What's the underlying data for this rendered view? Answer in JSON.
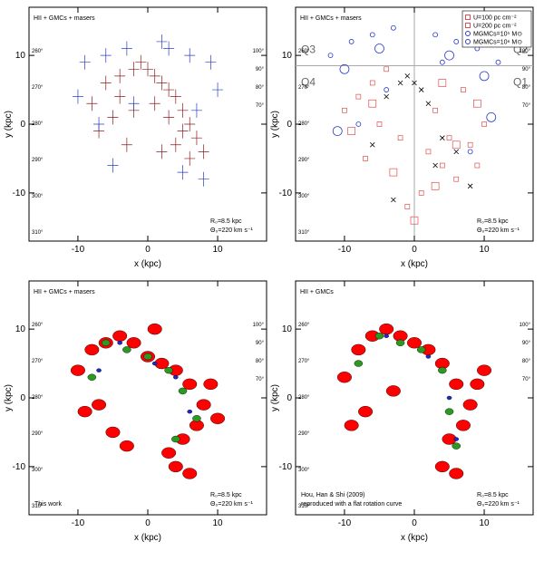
{
  "chart_data": [
    {
      "type": "scatter",
      "title": "HII + GMCs + masers",
      "xlabel": "x (kpc)",
      "ylabel": "y (kpc)",
      "xlim": [
        -17,
        17
      ],
      "ylim": [
        -17,
        17
      ],
      "xticks": [
        -10,
        0,
        10
      ],
      "yticks": [
        -10,
        0,
        10
      ],
      "notes": [
        "R₀=8.5 kpc",
        "Θ₀=220 km s⁻¹"
      ],
      "left_longitudes": [
        "260°",
        "270°",
        "280°",
        "290°",
        "300°",
        "310°"
      ],
      "right_longitudes": [
        "100°",
        "90°",
        "80°",
        "70°"
      ],
      "series": [
        {
          "color": "#8b1a1a",
          "marker": "plus",
          "x": [
            -6,
            -4,
            -2,
            -1,
            0,
            1,
            2,
            3,
            4,
            5,
            6,
            7,
            -8,
            -5,
            -3,
            2,
            4,
            6,
            8,
            -7,
            -2,
            3,
            5,
            1,
            -4
          ],
          "values": [
            6,
            7,
            8,
            9,
            8,
            7,
            6,
            5,
            4,
            2,
            0,
            -2,
            3,
            1,
            -3,
            -4,
            -3,
            -5,
            -4,
            -1,
            2,
            1,
            -1,
            3,
            4
          ]
        },
        {
          "color": "#2a3cc8",
          "marker": "plus",
          "x": [
            -9,
            -6,
            -3,
            3,
            6,
            9,
            -10,
            10,
            -5,
            5,
            7,
            -7,
            2,
            -2,
            8
          ],
          "values": [
            9,
            10,
            11,
            11,
            10,
            9,
            4,
            5,
            -6,
            -7,
            2,
            0,
            12,
            3,
            -8
          ]
        }
      ]
    },
    {
      "type": "scatter",
      "title": "HII + GMCs + masers",
      "xlabel": "x (kpc)",
      "ylabel": "y (kpc)",
      "xlim": [
        -17,
        17
      ],
      "ylim": [
        -17,
        17
      ],
      "xticks": [
        -10,
        0,
        10
      ],
      "yticks": [
        -10,
        0,
        10
      ],
      "notes": [
        "R₀=8.5 kpc",
        "Θ₀=220 km s⁻¹"
      ],
      "quadrants": [
        "Q3",
        "Q2",
        "Q4",
        "Q1"
      ],
      "left_longitudes": [
        "260°",
        "270°",
        "280°",
        "290°",
        "300°",
        "310°"
      ],
      "right_longitudes": [
        "100°",
        "90°",
        "80°",
        "70°"
      ],
      "series": [
        {
          "name": "U=100 pc cm⁻²",
          "color": "#e05050",
          "marker": "square",
          "size": 2.5,
          "x": [
            -10,
            -8,
            -6,
            -4,
            -2,
            2,
            4,
            6,
            8,
            10,
            -7,
            -5,
            3,
            5,
            7,
            1,
            -1,
            9
          ],
          "values": [
            2,
            4,
            6,
            8,
            -2,
            -4,
            -6,
            -8,
            -3,
            0,
            -5,
            0,
            2,
            -2,
            5,
            -10,
            -12,
            -6
          ]
        },
        {
          "name": "U=200 pc cm⁻²",
          "color": "#e05050",
          "marker": "square",
          "size": 4,
          "x": [
            -9,
            -3,
            0,
            3,
            6,
            9,
            -6,
            4
          ],
          "values": [
            -1,
            -7,
            -14,
            -9,
            -3,
            3,
            3,
            6
          ]
        },
        {
          "name": "MGMCs=10⁵ M⊙",
          "color": "#2a3cc8",
          "marker": "circle",
          "size": 2.5,
          "x": [
            -12,
            -9,
            -6,
            -3,
            3,
            6,
            9,
            12,
            -8,
            8,
            -4,
            4
          ],
          "values": [
            10,
            12,
            13,
            14,
            13,
            12,
            11,
            9,
            0,
            -4,
            5,
            9
          ]
        },
        {
          "name": "MGMCs=10⁶ M⊙",
          "color": "#2a3cc8",
          "marker": "circle",
          "size": 5,
          "x": [
            -10,
            -5,
            5,
            10,
            -11,
            11
          ],
          "values": [
            8,
            11,
            10,
            7,
            -1,
            1
          ]
        },
        {
          "color": "#000000",
          "marker": "x",
          "size": 2.5,
          "x": [
            -4,
            -2,
            -1,
            0,
            1,
            2,
            4,
            6,
            -6,
            -3,
            3,
            8
          ],
          "values": [
            4,
            6,
            7,
            6,
            5,
            3,
            -2,
            -4,
            -3,
            -11,
            -6,
            -9
          ]
        }
      ]
    },
    {
      "type": "scatter",
      "title": "HII + GMCs + masers",
      "xlabel": "x (kpc)",
      "ylabel": "y (kpc)",
      "xlim": [
        -17,
        17
      ],
      "ylim": [
        -17,
        17
      ],
      "xticks": [
        -10,
        0,
        10
      ],
      "yticks": [
        -10,
        0,
        10
      ],
      "notes": [
        "R₀=8.5 kpc",
        "Θ₀=220 km s⁻¹"
      ],
      "corner_note": [
        "This work"
      ],
      "left_longitudes": [
        "260°",
        "270°",
        "280°",
        "290°",
        "300°",
        "310°"
      ],
      "right_longitudes": [
        "100°",
        "90°",
        "80°",
        "70°"
      ],
      "series": [
        {
          "color": "#ff0000",
          "marker": "blob",
          "size": 6,
          "x": [
            -10,
            -8,
            -6,
            -4,
            -2,
            0,
            2,
            4,
            6,
            8,
            10,
            -7,
            -5,
            3,
            5,
            7,
            1,
            -9,
            9,
            -3,
            4,
            6
          ],
          "values": [
            4,
            7,
            8,
            9,
            8,
            6,
            5,
            4,
            2,
            -1,
            -3,
            -1,
            -5,
            -8,
            -6,
            -4,
            10,
            -2,
            2,
            -7,
            -10,
            -11
          ]
        },
        {
          "color": "#2a9a20",
          "marker": "blob",
          "size": 3.5,
          "x": [
            -6,
            -3,
            0,
            3,
            5,
            7,
            -8,
            4
          ],
          "values": [
            8,
            7,
            6,
            4,
            1,
            -3,
            3,
            -6
          ]
        },
        {
          "color": "#1c2acc",
          "marker": "blob",
          "size": 2,
          "x": [
            -4,
            1,
            4,
            -7,
            6
          ],
          "values": [
            8,
            5,
            3,
            4,
            -2
          ]
        }
      ]
    },
    {
      "type": "scatter",
      "title": "HII + GMCs",
      "xlabel": "x (kpc)",
      "ylabel": "y (kpc)",
      "xlim": [
        -17,
        17
      ],
      "ylim": [
        -17,
        17
      ],
      "xticks": [
        -10,
        0,
        10
      ],
      "yticks": [
        -10,
        0,
        10
      ],
      "notes": [
        "R₀=8.5 kpc",
        "Θ₀=220 km s⁻¹"
      ],
      "corner_note": [
        "Hou, Han & Shi (2009)",
        "reproduced with a flat rotation curve"
      ],
      "left_longitudes": [
        "260°",
        "270°",
        "280°",
        "290°",
        "300°",
        "310°"
      ],
      "right_longitudes": [
        "100°",
        "90°",
        "80°",
        "70°"
      ],
      "series": [
        {
          "color": "#ff0000",
          "marker": "blob",
          "size": 6,
          "x": [
            -10,
            -8,
            -6,
            -4,
            -2,
            0,
            2,
            4,
            6,
            8,
            10,
            -7,
            5,
            7,
            -9,
            9,
            4,
            6,
            -3
          ],
          "values": [
            3,
            7,
            9,
            10,
            9,
            8,
            7,
            5,
            2,
            -1,
            4,
            -2,
            -6,
            -4,
            -4,
            2,
            -10,
            -11,
            1
          ]
        },
        {
          "color": "#2a9a20",
          "marker": "blob",
          "size": 3.5,
          "x": [
            -5,
            -2,
            1,
            4,
            5,
            6,
            -8
          ],
          "values": [
            9,
            8,
            7,
            4,
            -2,
            -7,
            5
          ]
        },
        {
          "color": "#1c2acc",
          "marker": "blob",
          "size": 2,
          "x": [
            -4,
            2,
            5,
            6
          ],
          "values": [
            9,
            6,
            0,
            -6
          ]
        }
      ]
    }
  ]
}
